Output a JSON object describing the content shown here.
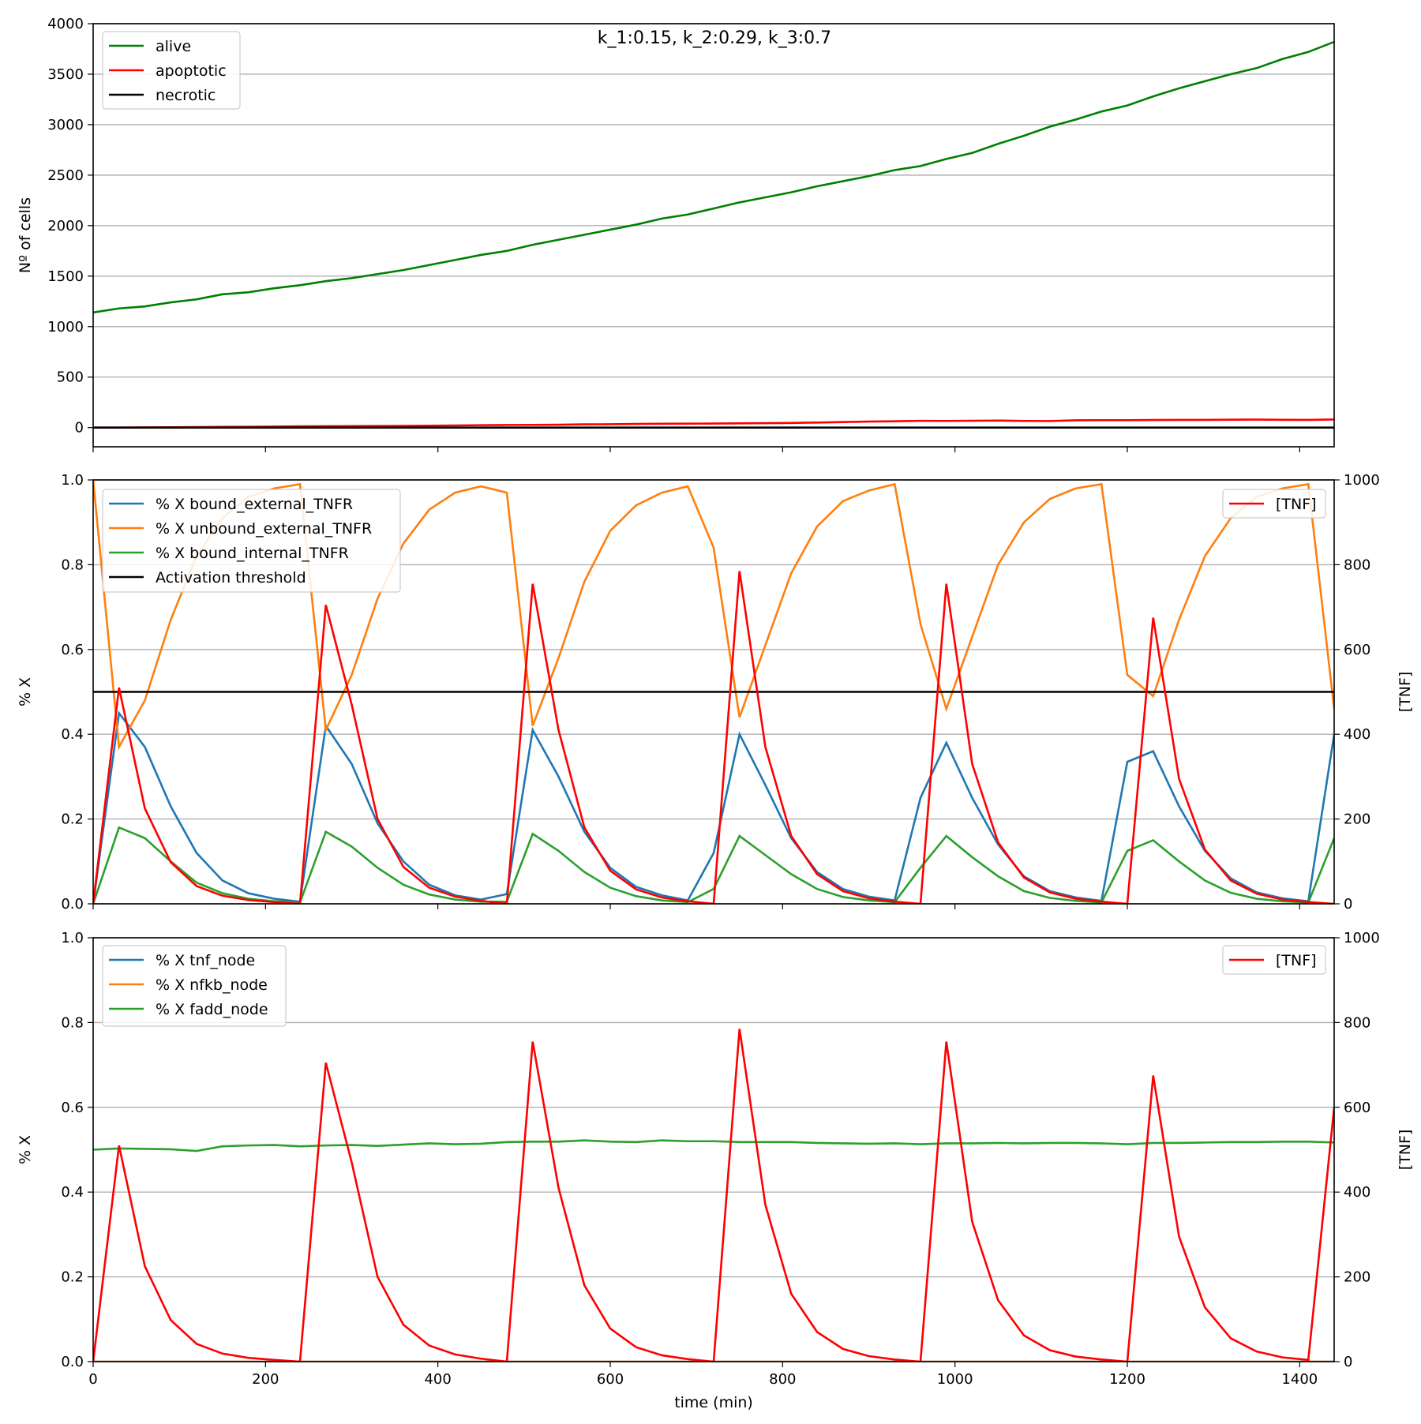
{
  "figure_title": "k_1:0.15, k_2:0.29, k_3:0.7",
  "chart_data": [
    {
      "type": "line",
      "ylabel": "Nº of cells",
      "xlim": [
        0,
        1440
      ],
      "ylim": [
        -190,
        4000
      ],
      "x_ticks": [
        0,
        200,
        400,
        600,
        800,
        1000,
        1200,
        1400
      ],
      "y_ticks": [
        0,
        500,
        1000,
        1500,
        2000,
        2500,
        3000,
        3500,
        4000
      ],
      "y_tick_labels": [
        "0",
        "500",
        "1000",
        "1500",
        "2000",
        "2500",
        "3000",
        "3500",
        "4000"
      ],
      "x_tick_labels_visible": false,
      "grid": "y",
      "legend_position": "upper-left",
      "x": [
        0,
        30,
        60,
        90,
        120,
        150,
        180,
        210,
        240,
        270,
        300,
        330,
        360,
        390,
        420,
        450,
        480,
        510,
        540,
        570,
        600,
        630,
        660,
        690,
        720,
        750,
        780,
        810,
        840,
        870,
        900,
        930,
        960,
        990,
        1020,
        1050,
        1080,
        1110,
        1140,
        1170,
        1200,
        1230,
        1260,
        1290,
        1320,
        1350,
        1380,
        1410,
        1440
      ],
      "series": [
        {
          "name": "alive",
          "color": "#008000",
          "values": [
            1140,
            1180,
            1200,
            1240,
            1270,
            1320,
            1340,
            1380,
            1410,
            1450,
            1480,
            1520,
            1560,
            1610,
            1660,
            1710,
            1750,
            1810,
            1860,
            1910,
            1960,
            2010,
            2070,
            2110,
            2170,
            2230,
            2280,
            2330,
            2390,
            2440,
            2490,
            2550,
            2590,
            2660,
            2720,
            2810,
            2890,
            2980,
            3050,
            3130,
            3190,
            3280,
            3360,
            3430,
            3500,
            3560,
            3650,
            3720,
            3820
          ]
        },
        {
          "name": "apoptotic",
          "color": "#ff0000",
          "values": [
            0,
            0,
            2,
            3,
            5,
            7,
            8,
            10,
            13,
            14,
            15,
            16,
            17,
            19,
            21,
            24,
            26,
            27,
            28,
            32,
            33,
            36,
            38,
            39,
            40,
            42,
            44,
            46,
            50,
            55,
            60,
            63,
            67,
            66,
            68,
            70,
            66,
            65,
            72,
            73,
            73,
            75,
            76,
            76,
            78,
            79,
            77,
            76,
            80
          ]
        },
        {
          "name": "necrotic",
          "color": "#000000",
          "values": [
            0,
            0,
            0,
            0,
            0,
            0,
            0,
            0,
            0,
            0,
            0,
            0,
            0,
            0,
            0,
            0,
            0,
            0,
            0,
            0,
            0,
            0,
            0,
            0,
            0,
            0,
            0,
            0,
            0,
            0,
            0,
            0,
            0,
            0,
            0,
            0,
            0,
            0,
            0,
            0,
            0,
            0,
            0,
            0,
            0,
            0,
            0,
            0,
            0
          ]
        }
      ]
    },
    {
      "type": "line",
      "ylabel": "% X",
      "y2label": "[TNF]",
      "xlim": [
        0,
        1440
      ],
      "ylim": [
        0,
        1
      ],
      "y2lim": [
        0,
        1000
      ],
      "x_ticks": [
        0,
        200,
        400,
        600,
        800,
        1000,
        1200,
        1400
      ],
      "y_ticks": [
        0,
        0.2,
        0.4,
        0.6,
        0.8,
        1.0
      ],
      "y_tick_labels": [
        "0.0",
        "0.2",
        "0.4",
        "0.6",
        "0.8",
        "1.0"
      ],
      "y2_ticks": [
        0,
        200,
        400,
        600,
        800,
        1000
      ],
      "y2_tick_labels": [
        "0",
        "200",
        "400",
        "600",
        "800",
        "1000"
      ],
      "x_tick_labels_visible": false,
      "grid": "y",
      "legend_position": "upper-left",
      "legend2_position": "upper-right",
      "x": [
        0,
        30,
        60,
        90,
        120,
        150,
        180,
        210,
        240,
        270,
        300,
        330,
        360,
        390,
        420,
        450,
        480,
        510,
        540,
        570,
        600,
        630,
        660,
        690,
        720,
        750,
        780,
        810,
        840,
        870,
        900,
        930,
        960,
        990,
        1020,
        1050,
        1080,
        1110,
        1140,
        1170,
        1200,
        1230,
        1260,
        1290,
        1320,
        1350,
        1380,
        1410,
        1440
      ],
      "series": [
        {
          "name": "% X bound_external_TNFR",
          "color": "#1f77b4",
          "axis": "left",
          "values": [
            0,
            0.45,
            0.37,
            0.23,
            0.12,
            0.055,
            0.025,
            0.012,
            0.005,
            0.42,
            0.33,
            0.19,
            0.1,
            0.045,
            0.02,
            0.01,
            0.023,
            0.41,
            0.3,
            0.17,
            0.085,
            0.04,
            0.02,
            0.008,
            0.12,
            0.4,
            0.28,
            0.155,
            0.075,
            0.035,
            0.017,
            0.008,
            0.25,
            0.38,
            0.25,
            0.14,
            0.065,
            0.03,
            0.015,
            0.007,
            0.335,
            0.36,
            0.23,
            0.125,
            0.06,
            0.027,
            0.013,
            0.006,
            0.4
          ]
        },
        {
          "name": "% X unbound_external_TNFR",
          "color": "#ff7f0e",
          "axis": "left",
          "values": [
            1.0,
            0.37,
            0.48,
            0.67,
            0.82,
            0.91,
            0.96,
            0.98,
            0.99,
            0.41,
            0.54,
            0.72,
            0.85,
            0.93,
            0.97,
            0.985,
            0.97,
            0.42,
            0.58,
            0.76,
            0.88,
            0.94,
            0.97,
            0.985,
            0.84,
            0.44,
            0.61,
            0.78,
            0.89,
            0.95,
            0.975,
            0.99,
            0.66,
            0.46,
            0.63,
            0.8,
            0.9,
            0.955,
            0.98,
            0.99,
            0.54,
            0.49,
            0.67,
            0.82,
            0.91,
            0.96,
            0.98,
            0.99,
            0.46
          ]
        },
        {
          "name": "% X bound_internal_TNFR",
          "color": "#2ca02c",
          "axis": "left",
          "values": [
            0,
            0.18,
            0.155,
            0.1,
            0.05,
            0.025,
            0.012,
            0.006,
            0.003,
            0.17,
            0.135,
            0.085,
            0.045,
            0.022,
            0.01,
            0.005,
            0.005,
            0.165,
            0.125,
            0.075,
            0.038,
            0.018,
            0.008,
            0.004,
            0.035,
            0.16,
            0.115,
            0.07,
            0.035,
            0.016,
            0.008,
            0.004,
            0.085,
            0.16,
            0.11,
            0.065,
            0.03,
            0.014,
            0.007,
            0.003,
            0.125,
            0.15,
            0.1,
            0.055,
            0.026,
            0.012,
            0.006,
            0.003,
            0.155
          ]
        },
        {
          "name": "Activation threshold",
          "color": "#000000",
          "axis": "left",
          "values": [
            0.5,
            0.5,
            0.5,
            0.5,
            0.5,
            0.5,
            0.5,
            0.5,
            0.5,
            0.5,
            0.5,
            0.5,
            0.5,
            0.5,
            0.5,
            0.5,
            0.5,
            0.5,
            0.5,
            0.5,
            0.5,
            0.5,
            0.5,
            0.5,
            0.5,
            0.5,
            0.5,
            0.5,
            0.5,
            0.5,
            0.5,
            0.5,
            0.5,
            0.5,
            0.5,
            0.5,
            0.5,
            0.5,
            0.5,
            0.5,
            0.5,
            0.5,
            0.5,
            0.5,
            0.5,
            0.5,
            0.5,
            0.5,
            0.5
          ]
        },
        {
          "name": "[TNF]",
          "color": "#ff0000",
          "axis": "right",
          "values": [
            0,
            510,
            225,
            98,
            42,
            19,
            9,
            4,
            0,
            705,
            470,
            200,
            87,
            38,
            17,
            7,
            0,
            755,
            410,
            180,
            78,
            34,
            15,
            6,
            0,
            785,
            370,
            160,
            70,
            30,
            13,
            5,
            0,
            755,
            330,
            145,
            62,
            27,
            12,
            5,
            0,
            675,
            295,
            128,
            55,
            24,
            10,
            4,
            0
          ]
        }
      ]
    },
    {
      "type": "line",
      "xlabel": "time (min)",
      "ylabel": "% X",
      "y2label": "[TNF]",
      "xlim": [
        0,
        1440
      ],
      "ylim": [
        0,
        1
      ],
      "y2lim": [
        0,
        1000
      ],
      "x_ticks": [
        0,
        200,
        400,
        600,
        800,
        1000,
        1200,
        1400
      ],
      "x_tick_labels": [
        "0",
        "200",
        "400",
        "600",
        "800",
        "1000",
        "1200",
        "1400"
      ],
      "y_ticks": [
        0,
        0.2,
        0.4,
        0.6,
        0.8,
        1.0
      ],
      "y_tick_labels": [
        "0.0",
        "0.2",
        "0.4",
        "0.6",
        "0.8",
        "1.0"
      ],
      "y2_ticks": [
        0,
        200,
        400,
        600,
        800,
        1000
      ],
      "y2_tick_labels": [
        "0",
        "200",
        "400",
        "600",
        "800",
        "1000"
      ],
      "x_tick_labels_visible": true,
      "grid": "y",
      "legend_position": "upper-left",
      "legend2_position": "upper-right",
      "x": [
        0,
        30,
        60,
        90,
        120,
        150,
        180,
        210,
        240,
        270,
        300,
        330,
        360,
        390,
        420,
        450,
        480,
        510,
        540,
        570,
        600,
        630,
        660,
        690,
        720,
        750,
        780,
        810,
        840,
        870,
        900,
        930,
        960,
        990,
        1020,
        1050,
        1080,
        1110,
        1140,
        1170,
        1200,
        1230,
        1260,
        1290,
        1320,
        1350,
        1380,
        1410,
        1440
      ],
      "series": [
        {
          "name": "% X tnf_node",
          "color": "#1f77b4",
          "axis": "left",
          "values": [
            0,
            0,
            0,
            0,
            0,
            0,
            0,
            0,
            0,
            0,
            0,
            0,
            0,
            0,
            0,
            0,
            0,
            0,
            0,
            0,
            0,
            0,
            0,
            0,
            0,
            0,
            0,
            0,
            0,
            0,
            0,
            0,
            0,
            0,
            0,
            0,
            0,
            0,
            0,
            0,
            0,
            0,
            0,
            0,
            0,
            0,
            0,
            0,
            0
          ]
        },
        {
          "name": "% X nfkb_node",
          "color": "#ff7f0e",
          "axis": "left",
          "values": [
            0,
            0,
            0,
            0,
            0,
            0,
            0,
            0,
            0,
            0,
            0,
            0,
            0,
            0,
            0,
            0,
            0,
            0,
            0,
            0,
            0,
            0,
            0,
            0,
            0,
            0,
            0,
            0,
            0,
            0,
            0,
            0,
            0,
            0,
            0,
            0,
            0,
            0,
            0,
            0,
            0,
            0,
            0,
            0,
            0,
            0,
            0,
            0,
            0
          ]
        },
        {
          "name": "% X fadd_node",
          "color": "#2ca02c",
          "axis": "left",
          "values": [
            0.5,
            0.503,
            0.502,
            0.501,
            0.497,
            0.508,
            0.51,
            0.511,
            0.508,
            0.51,
            0.511,
            0.509,
            0.512,
            0.515,
            0.513,
            0.514,
            0.518,
            0.519,
            0.519,
            0.522,
            0.519,
            0.518,
            0.522,
            0.52,
            0.52,
            0.518,
            0.518,
            0.518,
            0.516,
            0.515,
            0.514,
            0.515,
            0.513,
            0.515,
            0.515,
            0.516,
            0.515,
            0.516,
            0.516,
            0.515,
            0.513,
            0.516,
            0.516,
            0.517,
            0.518,
            0.518,
            0.519,
            0.519,
            0.517
          ]
        },
        {
          "name": "[TNF]",
          "color": "#ff0000",
          "axis": "right",
          "values": [
            0,
            510,
            225,
            98,
            42,
            19,
            9,
            4,
            0,
            705,
            470,
            200,
            87,
            38,
            17,
            7,
            0,
            755,
            410,
            180,
            78,
            34,
            15,
            6,
            0,
            785,
            370,
            160,
            70,
            30,
            13,
            5,
            0,
            755,
            330,
            145,
            62,
            27,
            12,
            5,
            0,
            675,
            295,
            128,
            55,
            24,
            10,
            4,
            600
          ]
        }
      ]
    }
  ]
}
